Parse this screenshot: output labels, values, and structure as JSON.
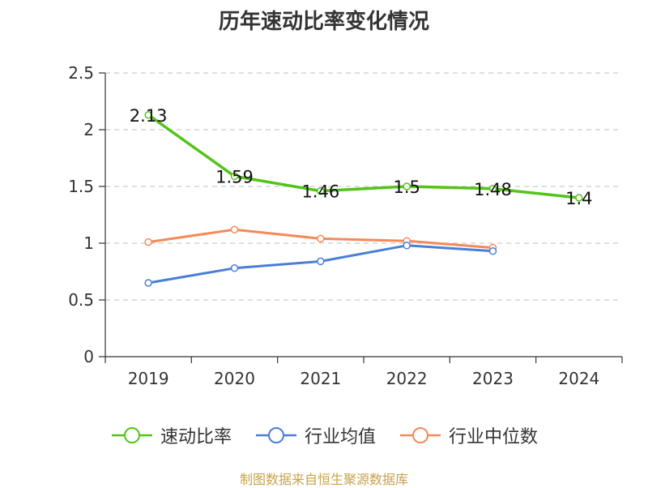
{
  "chart_data": {
    "type": "line",
    "title": "历年速动比率变化情况",
    "categories": [
      "2019",
      "2020",
      "2021",
      "2022",
      "2023",
      "2024"
    ],
    "ylim": [
      0,
      2.5
    ],
    "yticks": [
      0,
      0.5,
      1,
      1.5,
      2,
      2.5
    ],
    "ytick_labels": [
      "0",
      "0.5",
      "1",
      "1.5",
      "2",
      "2.5"
    ],
    "grid": true,
    "legend_position": "bottom",
    "series": [
      {
        "name": "速动比率",
        "color": "#52c41a",
        "values": [
          2.13,
          1.59,
          1.46,
          1.5,
          1.48,
          1.4
        ],
        "labels": [
          "2.13",
          "1.59",
          "1.46",
          "1.5",
          "1.48",
          "1.4"
        ]
      },
      {
        "name": "行业均值",
        "color": "#4a7fd6",
        "values": [
          0.65,
          0.78,
          0.84,
          0.98,
          0.93,
          null
        ]
      },
      {
        "name": "行业中位数",
        "color": "#f5895a",
        "values": [
          1.01,
          1.12,
          1.04,
          1.02,
          0.96,
          null
        ]
      }
    ]
  },
  "source": {
    "text": "制图数据来自恒生聚源数据库",
    "color": "#c8a24a"
  }
}
